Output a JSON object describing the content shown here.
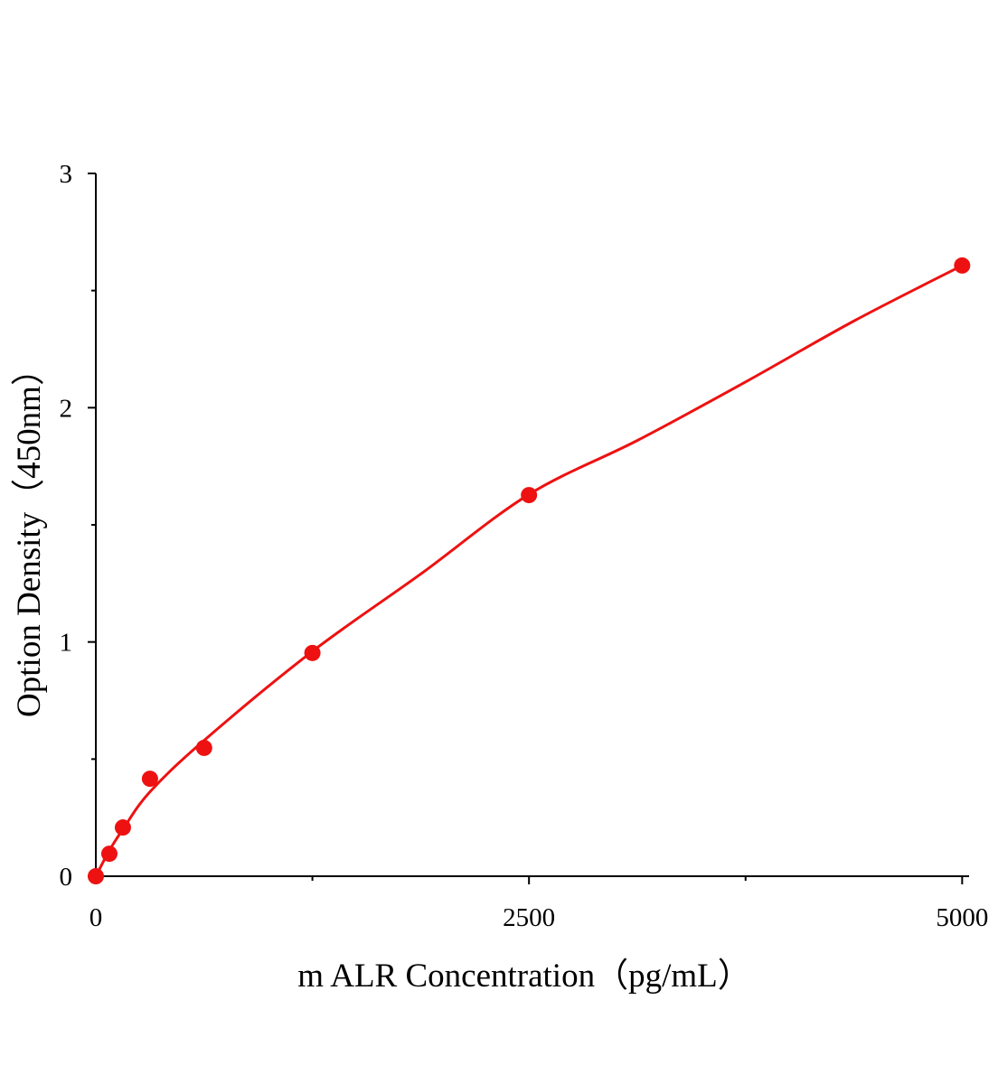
{
  "chart_data": {
    "type": "scatter",
    "x_label": "m ALR Concentration（pg/mL）",
    "y_label": "Option Density（450nm）",
    "xlim": [
      0,
      5040
    ],
    "ylim": [
      0,
      3
    ],
    "xticks": [
      0,
      2500,
      5000
    ],
    "yticks": [
      0,
      1,
      2,
      3
    ],
    "xminorticks": [
      1250,
      3750
    ],
    "yminorticks": [
      0.5,
      1.5,
      2.5
    ],
    "series": [
      {
        "kind": "points",
        "color": "#ee1111",
        "x": [
          0,
          78.125,
          156.25,
          312.5,
          625,
          1250,
          2500,
          5000
        ],
        "values": [
          0.0,
          0.096,
          0.208,
          0.416,
          0.548,
          0.953,
          1.627,
          2.607
        ]
      },
      {
        "kind": "fit",
        "color": "#ee1111",
        "x": [
          0,
          78,
          156,
          312,
          625,
          1250,
          1875,
          2500,
          3125,
          3750,
          4375,
          5000
        ],
        "values": [
          0,
          0.11,
          0.2,
          0.36,
          0.58,
          0.96,
          1.29,
          1.63,
          1.86,
          2.11,
          2.37,
          2.607
        ]
      }
    ]
  }
}
